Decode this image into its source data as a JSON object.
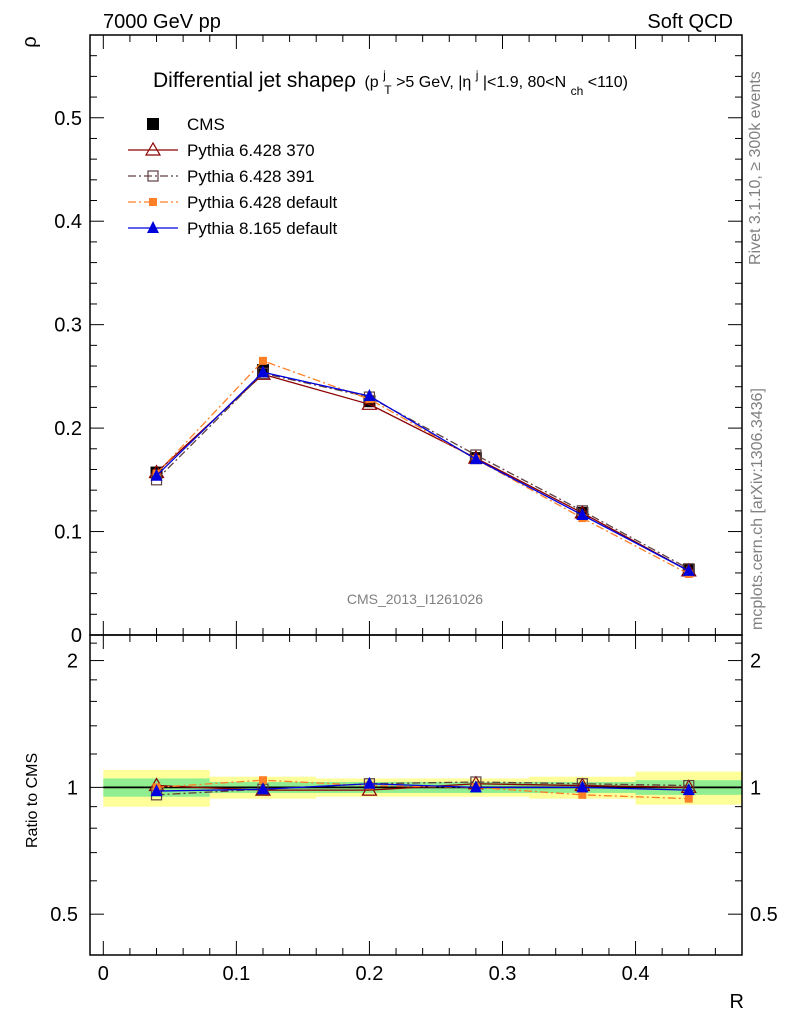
{
  "header": {
    "left": "7000 GeV pp",
    "right": "Soft QCD"
  },
  "side_labels": {
    "rivet": "Rivet 3.1.10, ≥ 300k events",
    "mcplots": "mcplots.cern.ch [arXiv:1306.3436]"
  },
  "watermark": "CMS_2013_I1261026",
  "title": {
    "main": "Differential jet shapeρ",
    "p": "(p",
    "sup_j": "j",
    "sub_T": "T",
    "pt": ">5 GeV, |η",
    "sup_j2": "j",
    "eta": "|<1.9, 80<N",
    "sub_ch": "ch",
    "nch": "<110)"
  },
  "chart_data": [
    {
      "type": "line",
      "title": "Differential jet shapeρ (p_T^j>5 GeV, |η^j|<1.9, 80<N_ch<110)",
      "ylabel": "ρ",
      "xlim": [
        -0.01,
        0.48
      ],
      "ylim": [
        0,
        0.58
      ],
      "yticks": [
        0,
        0.1,
        0.2,
        0.3,
        0.4,
        0.5
      ],
      "ytick_labels": [
        "0",
        "0.1",
        "0.2",
        "0.3",
        "0.4",
        "0.5"
      ],
      "x": [
        0.04,
        0.12,
        0.2,
        0.28,
        0.36,
        0.44
      ],
      "data": {
        "name": "CMS",
        "values": [
          0.157,
          0.256,
          0.226,
          0.171,
          0.118,
          0.063
        ]
      },
      "series": [
        {
          "name": "Pythia 6.428 370",
          "color": "#8b0000",
          "marker": "open-triangle",
          "dash": "solid",
          "values": [
            0.157,
            0.252,
            0.223,
            0.171,
            0.118,
            0.062
          ]
        },
        {
          "name": "Pythia 6.428 391",
          "color": "#604040",
          "marker": "open-square",
          "dash": "dash-dot",
          "values": [
            0.15,
            0.253,
            0.23,
            0.174,
            0.12,
            0.064
          ]
        },
        {
          "name": "Pythia 6.428 default",
          "color": "#ff7f27",
          "marker": "filled-square",
          "dash": "dash-dot",
          "values": [
            0.156,
            0.265,
            0.228,
            0.17,
            0.113,
            0.059
          ]
        },
        {
          "name": "Pythia 8.165 default",
          "color": "#0000dd",
          "marker": "filled-triangle",
          "dash": "solid",
          "values": [
            0.154,
            0.254,
            0.231,
            0.17,
            0.116,
            0.062
          ]
        }
      ],
      "legend_entries": [
        "CMS",
        "Pythia 6.428 370",
        "Pythia 6.428 391",
        "Pythia 6.428 default",
        "Pythia 8.165 default"
      ],
      "legend_position": "top-left"
    },
    {
      "type": "line",
      "title": "",
      "xlabel": "R",
      "ylabel": "Ratio to CMS",
      "xlim": [
        -0.01,
        0.48
      ],
      "ylim": [
        0.4,
        2.3
      ],
      "yticks": [
        0.5,
        1,
        2
      ],
      "ytick_labels": [
        "0.5",
        "1",
        "2"
      ],
      "xticks": [
        0,
        0.1,
        0.2,
        0.3,
        0.4
      ],
      "xtick_labels": [
        "0",
        "0.1",
        "0.2",
        "0.3",
        "0.4"
      ],
      "x": [
        0.04,
        0.12,
        0.2,
        0.28,
        0.36,
        0.44
      ],
      "bins": [
        [
          0.0,
          0.08
        ],
        [
          0.08,
          0.16
        ],
        [
          0.16,
          0.24
        ],
        [
          0.24,
          0.32
        ],
        [
          0.32,
          0.4
        ],
        [
          0.4,
          0.48
        ]
      ],
      "band_inner": [
        0.05,
        0.03,
        0.03,
        0.03,
        0.03,
        0.04
      ],
      "band_outer": [
        0.1,
        0.06,
        0.05,
        0.05,
        0.06,
        0.09
      ],
      "band_colors": {
        "inner": "#90ee90",
        "outer": "#ffff99"
      },
      "series": [
        {
          "name": "Pythia 6.428 370",
          "color": "#8b0000",
          "marker": "open-triangle",
          "dash": "solid",
          "values": [
            1.01,
            0.985,
            0.985,
            1.02,
            1.01,
            1.0
          ]
        },
        {
          "name": "Pythia 6.428 391",
          "color": "#604040",
          "marker": "open-square",
          "dash": "dash-dot",
          "values": [
            0.96,
            0.99,
            1.02,
            1.03,
            1.02,
            1.01
          ]
        },
        {
          "name": "Pythia 6.428 default",
          "color": "#ff7f27",
          "marker": "filled-square",
          "dash": "dash-dot",
          "values": [
            1.0,
            1.04,
            1.01,
            1.0,
            0.96,
            0.94
          ]
        },
        {
          "name": "Pythia 8.165 default",
          "color": "#0000dd",
          "marker": "filled-triangle",
          "dash": "solid",
          "values": [
            0.98,
            0.99,
            1.02,
            1.0,
            1.0,
            0.985
          ]
        }
      ]
    }
  ]
}
